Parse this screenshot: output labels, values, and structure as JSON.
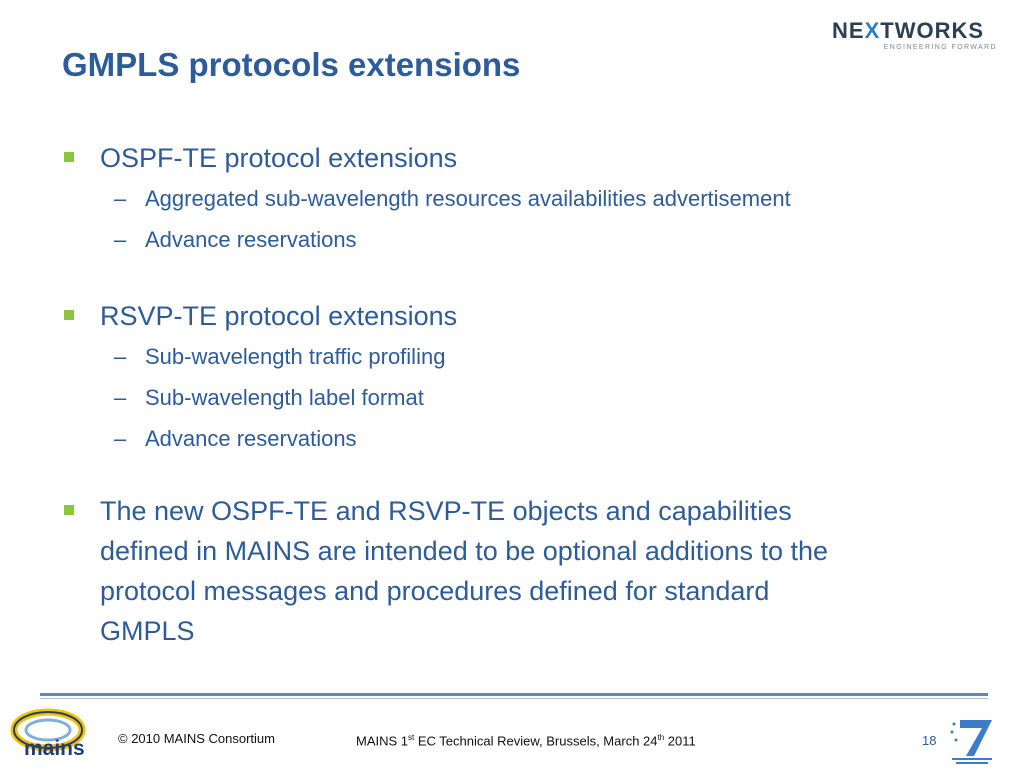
{
  "slide": {
    "title": "GMPLS protocols extensions",
    "sections": [
      {
        "heading": "OSPF-TE protocol extensions",
        "items": [
          "Aggregated sub-wavelength resources availabilities advertisement",
          "Advance reservations"
        ]
      },
      {
        "heading": "RSVP-TE protocol extensions",
        "items": [
          "Sub-wavelength traffic profiling",
          "Sub-wavelength label format",
          "Advance reservations"
        ]
      },
      {
        "heading_lines": [
          "The new OSPF-TE and RSVP-TE objects and capabilities",
          "defined in MAINS are intended to be optional additions to the",
          "protocol messages and procedures defined for standard",
          "GMPLS"
        ]
      }
    ],
    "bullet_color": "#8cc63f",
    "text_color": "#2e5c9a"
  },
  "logos": {
    "nextworks": {
      "pre": "NE",
      "x": "X",
      "post": "TWORKS",
      "tagline": "ENGINEERING FORWARD"
    },
    "mains": {
      "text": "mains"
    },
    "fp7": {
      "icon": "seventh-framework-programme-logo"
    }
  },
  "footer": {
    "copyright": "© 2010 MAINS Consortium",
    "event_pre": "MAINS 1",
    "event_sup1": "st",
    "event_mid": " EC Technical Review, Brussels, March 24",
    "event_sup2": "th",
    "event_post": " 2011",
    "page_number": "18"
  }
}
